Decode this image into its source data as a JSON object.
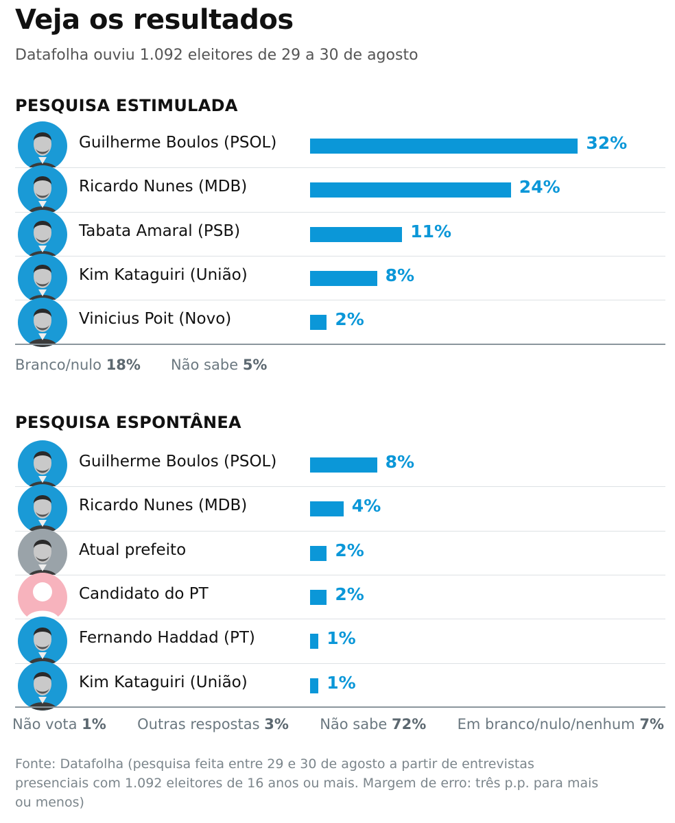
{
  "header": {
    "title": "Veja os resultados",
    "subtitle": "Datafolha ouviu 1.092 eleitores de 29 a 30 de agosto"
  },
  "colors": {
    "bar": "#0b97d8",
    "avatar_bg": "#1a9ad6",
    "avatar_gray": "#9aa3a9",
    "avatar_pink": "#f7b3bd"
  },
  "chart_data": [
    {
      "type": "bar",
      "orientation": "horizontal",
      "title": "PESQUISA ESTIMULADA",
      "categories": [
        "Guilherme Boulos (PSOL)",
        "Ricardo Nunes (MDB)",
        "Tabata Amaral (PSB)",
        "Kim Kataguiri (União)",
        "Vinicius Poit (Novo)"
      ],
      "values": [
        32,
        24,
        11,
        8,
        2
      ],
      "labels": [
        "32%",
        "24%",
        "11%",
        "8%",
        "2%"
      ],
      "avatars": [
        "photo",
        "photo",
        "photo",
        "photo",
        "photo"
      ],
      "others": [
        {
          "label": "Branco/nulo",
          "value": "18%"
        },
        {
          "label": "Não sabe",
          "value": "5%"
        }
      ]
    },
    {
      "type": "bar",
      "orientation": "horizontal",
      "title": "PESQUISA ESPONTÂNEA",
      "categories": [
        "Guilherme Boulos (PSOL)",
        "Ricardo Nunes (MDB)",
        "Atual prefeito",
        "Candidato do PT",
        "Fernando Haddad (PT)",
        "Kim Kataguiri (União)"
      ],
      "values": [
        8,
        4,
        2,
        2,
        1,
        1
      ],
      "labels": [
        "8%",
        "4%",
        "2%",
        "2%",
        "1%",
        "1%"
      ],
      "avatars": [
        "photo",
        "photo",
        "photo-gray",
        "placeholder-pink",
        "photo",
        "photo"
      ],
      "others": [
        {
          "label": "Não vota",
          "value": "1%"
        },
        {
          "label": "Outras respostas",
          "value": "3%"
        },
        {
          "label": "Não sabe",
          "value": "72%"
        },
        {
          "label": "Em branco/nulo/nenhum",
          "value": "7%"
        }
      ]
    }
  ],
  "source": "Fonte: Datafolha (pesquisa feita entre 29 e 30 de agosto a partir de entrevistas presenciais com 1.092 eleitores de 16 anos ou mais. Margem de erro: três p.p. para mais ou menos)"
}
